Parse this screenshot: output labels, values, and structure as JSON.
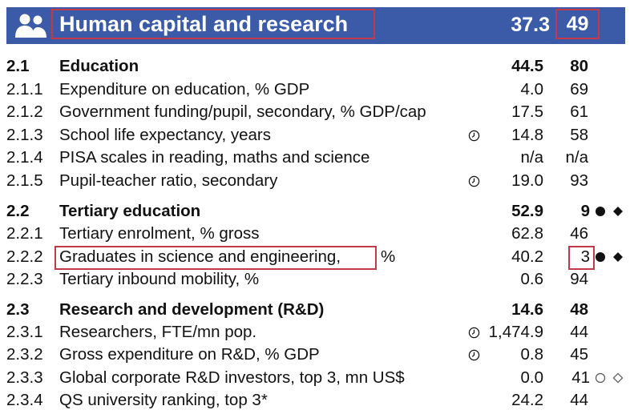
{
  "header": {
    "title": "Human capital and research",
    "score": "37.3",
    "rank": "49",
    "icon": "people-icon",
    "background_color": "#3b5ba9",
    "highlight_color": "#c23a47"
  },
  "rows": [
    {
      "code": "2.1",
      "label": "Education",
      "score": "44.5",
      "rank": "80"
    },
    {
      "code": "2.1.1",
      "label": "Expenditure on education, % GDP",
      "score": "4.0",
      "rank": "69"
    },
    {
      "code": "2.1.2",
      "label": "Government funding/pupil, secondary, % GDP/cap",
      "score": "17.5",
      "rank": "61"
    },
    {
      "code": "2.1.3",
      "label": "School life expectancy, years",
      "score": "14.8",
      "rank": "58"
    },
    {
      "code": "2.1.4",
      "label": "PISA scales in reading, maths and science",
      "score": "n/a",
      "rank": "n/a"
    },
    {
      "code": "2.1.5",
      "label": "Pupil-teacher ratio, secondary",
      "score": "19.0",
      "rank": "93"
    },
    {
      "code": "2.2",
      "label": "Tertiary education",
      "score": "52.9",
      "rank": "9"
    },
    {
      "code": "2.2.1",
      "label": "Tertiary enrolment, % gross",
      "score": "62.8",
      "rank": "46"
    },
    {
      "code": "2.2.2",
      "label": "Graduates in science and engineering,",
      "label_suffix": "%",
      "score": "40.2",
      "rank": "3"
    },
    {
      "code": "2.2.3",
      "label": "Tertiary inbound mobility, %",
      "score": "0.6",
      "rank": "94"
    },
    {
      "code": "2.3",
      "label": "Research and development (R&D)",
      "score": "14.6",
      "rank": "48"
    },
    {
      "code": "2.3.1",
      "label": "Researchers, FTE/mn pop.",
      "score": "1,474.9",
      "rank": "44"
    },
    {
      "code": "2.3.2",
      "label": "Gross expenditure on R&D, % GDP",
      "score": "0.8",
      "rank": "45"
    },
    {
      "code": "2.3.3",
      "label": "Global corporate R&D investors, top 3, mn US$",
      "score": "0.0",
      "rank": "41"
    },
    {
      "code": "2.3.4",
      "label": "QS university ranking, top 3*",
      "score": "24.2",
      "rank": "44"
    }
  ]
}
